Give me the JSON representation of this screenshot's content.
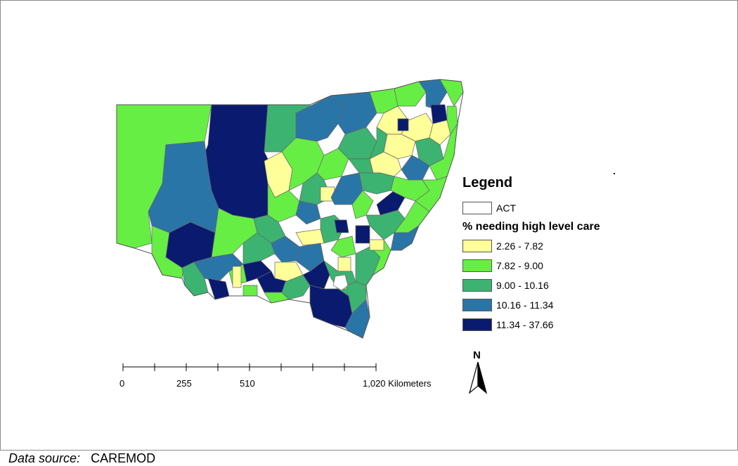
{
  "legend": {
    "title": "Legend",
    "act_label": "ACT",
    "subtitle": "% needing high level care",
    "classes": [
      {
        "label": "2.26 - 7.82",
        "color": "#ffff99"
      },
      {
        "label": "7.82 - 9.00",
        "color": "#66ee44"
      },
      {
        "label": "9.00 - 10.16",
        "color": "#3cb371"
      },
      {
        "label": "10.16 - 11.34",
        "color": "#2a75a8"
      },
      {
        "label": "11.34 - 37.66",
        "color": "#0a1a6e"
      }
    ]
  },
  "scalebar": {
    "labels": [
      "0",
      "255",
      "510",
      "1,020 Kilometers"
    ]
  },
  "north_arrow": {
    "letter": "N",
    "icon": "north-arrow-icon"
  },
  "source": {
    "key": "Data source:",
    "value": "CAREMOD"
  }
}
